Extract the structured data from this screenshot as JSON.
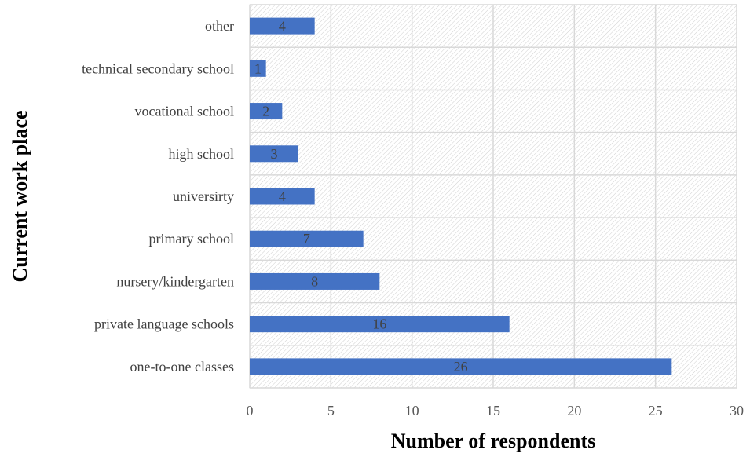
{
  "chart_data": {
    "type": "bar",
    "orientation": "horizontal",
    "categories": [
      "other",
      "technical secondary school",
      "vocational school",
      "high school",
      "universirty",
      "primary school",
      "nursery/kindergarten",
      "private language schools",
      "one-to-one classes"
    ],
    "values": [
      4,
      1,
      2,
      3,
      4,
      7,
      8,
      16,
      26
    ],
    "xlabel": "Number of respondents",
    "ylabel": "Current work place",
    "xlim": [
      0,
      30
    ],
    "xticks": [
      0,
      5,
      10,
      15,
      20,
      25,
      30
    ],
    "grid": true,
    "data_labels": true,
    "colors": {
      "bar": "#4472c4",
      "grid": "#d9d9d9",
      "hatch": "#d0d0d0"
    }
  }
}
